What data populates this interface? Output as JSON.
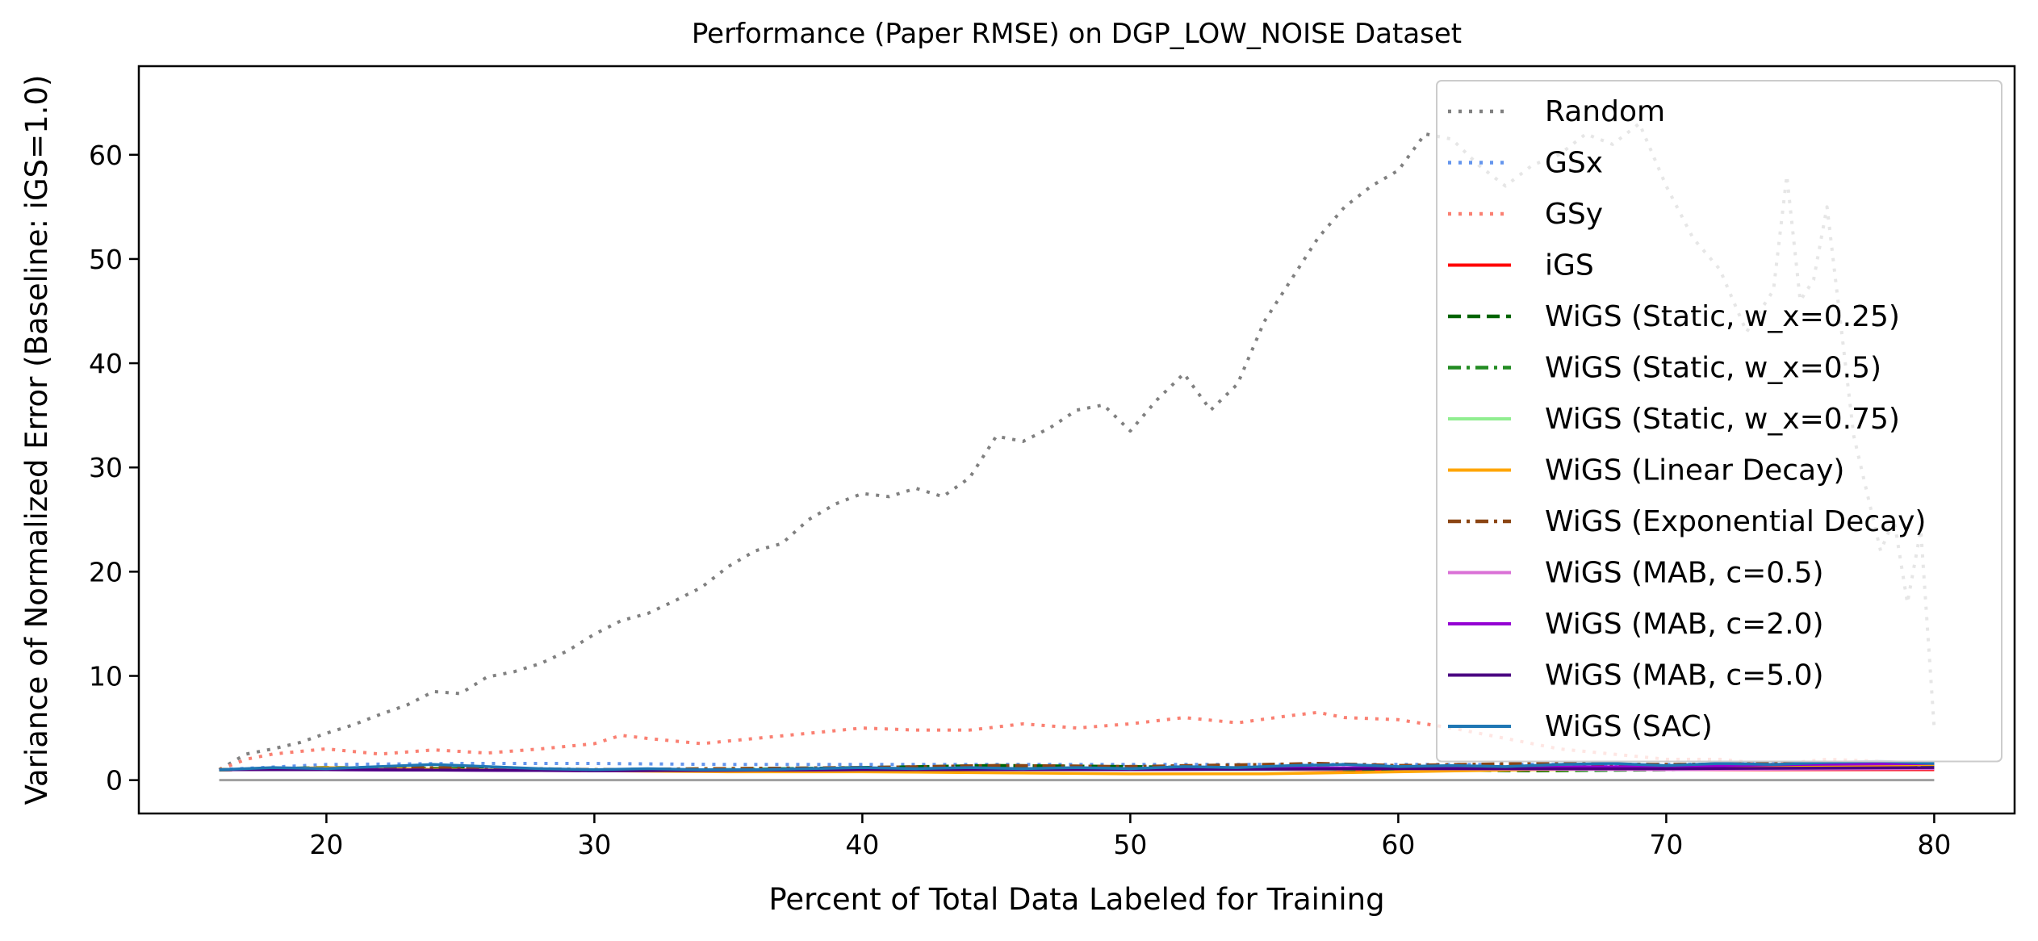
{
  "chart_data": {
    "type": "line",
    "title": "Performance (Paper RMSE) on DGP_LOW_NOISE Dataset",
    "xlabel": "Percent of Total Data Labeled for Training",
    "ylabel": "Variance of Normalized Error (Baseline: iGS=1.0)",
    "xlim": [
      13,
      83
    ],
    "ylim": [
      -3.2,
      68.5
    ],
    "xticks": [
      20,
      30,
      40,
      50,
      60,
      70,
      80
    ],
    "yticks": [
      0,
      10,
      20,
      30,
      40,
      50,
      60
    ],
    "grid": false,
    "legend_position": "top-right",
    "series": [
      {
        "name": "Random",
        "color": "#808080",
        "style": "dotted",
        "points": [
          [
            16,
            1.0
          ],
          [
            17,
            2.5
          ],
          [
            18,
            3.0
          ],
          [
            19,
            3.6
          ],
          [
            20,
            4.5
          ],
          [
            21,
            5.3
          ],
          [
            22,
            6.3
          ],
          [
            23,
            7.2
          ],
          [
            24,
            8.5
          ],
          [
            25,
            8.3
          ],
          [
            26,
            9.9
          ],
          [
            27,
            10.4
          ],
          [
            28,
            11.2
          ],
          [
            29,
            12.4
          ],
          [
            30,
            14.0
          ],
          [
            31,
            15.3
          ],
          [
            32,
            16.0
          ],
          [
            33,
            17.2
          ],
          [
            34,
            18.5
          ],
          [
            35,
            20.5
          ],
          [
            36,
            22.0
          ],
          [
            37,
            22.7
          ],
          [
            38,
            25.0
          ],
          [
            39,
            26.5
          ],
          [
            40,
            27.5
          ],
          [
            41,
            27.2
          ],
          [
            42,
            28.0
          ],
          [
            43,
            27.2
          ],
          [
            44,
            29.0
          ],
          [
            45,
            33.0
          ],
          [
            46,
            32.5
          ],
          [
            47,
            33.8
          ],
          [
            48,
            35.5
          ],
          [
            49,
            36.0
          ],
          [
            50,
            33.5
          ],
          [
            51,
            36.5
          ],
          [
            52,
            39.0
          ],
          [
            53,
            35.5
          ],
          [
            54,
            38.0
          ],
          [
            55,
            44.0
          ],
          [
            56,
            48.0
          ],
          [
            57,
            52.0
          ],
          [
            58,
            55.0
          ],
          [
            59,
            57.0
          ],
          [
            60,
            58.5
          ],
          [
            61,
            62.0
          ],
          [
            62,
            61.5
          ],
          [
            63,
            59.0
          ],
          [
            64,
            57.0
          ],
          [
            65,
            59.0
          ],
          [
            66,
            60.0
          ],
          [
            67,
            62.0
          ],
          [
            68,
            61.0
          ],
          [
            69,
            63.0
          ],
          [
            70,
            57.0
          ],
          [
            71,
            52.0
          ],
          [
            72,
            49.0
          ],
          [
            73,
            43.0
          ],
          [
            74,
            47.0
          ],
          [
            74.5,
            58.0
          ],
          [
            75,
            46.0
          ],
          [
            75.5,
            48.0
          ],
          [
            76,
            55.0
          ],
          [
            76.5,
            44.0
          ],
          [
            77,
            33.0
          ],
          [
            78,
            22.0
          ],
          [
            78.5,
            25.0
          ],
          [
            79,
            17.0
          ],
          [
            79.5,
            24.0
          ],
          [
            80,
            5.0
          ]
        ]
      },
      {
        "name": "GSx",
        "color": "#6495ed",
        "style": "dotted",
        "points": [
          [
            16,
            1.0
          ],
          [
            20,
            1.5
          ],
          [
            25,
            1.6
          ],
          [
            30,
            1.6
          ],
          [
            35,
            1.5
          ],
          [
            40,
            1.5
          ],
          [
            45,
            1.5
          ],
          [
            50,
            1.5
          ],
          [
            55,
            1.5
          ],
          [
            60,
            1.5
          ],
          [
            65,
            1.5
          ],
          [
            70,
            1.5
          ],
          [
            75,
            1.6
          ],
          [
            80,
            1.6
          ]
        ]
      },
      {
        "name": "GSy",
        "color": "#fa8072",
        "style": "dotted",
        "points": [
          [
            16,
            1.0
          ],
          [
            17,
            2.0
          ],
          [
            18,
            2.5
          ],
          [
            20,
            3.0
          ],
          [
            22,
            2.5
          ],
          [
            24,
            2.9
          ],
          [
            26,
            2.6
          ],
          [
            28,
            3.0
          ],
          [
            30,
            3.5
          ],
          [
            31,
            4.3
          ],
          [
            32,
            4.0
          ],
          [
            34,
            3.5
          ],
          [
            36,
            4.0
          ],
          [
            38,
            4.5
          ],
          [
            40,
            5.0
          ],
          [
            42,
            4.8
          ],
          [
            44,
            4.8
          ],
          [
            46,
            5.4
          ],
          [
            48,
            5.0
          ],
          [
            50,
            5.4
          ],
          [
            52,
            6.0
          ],
          [
            54,
            5.5
          ],
          [
            56,
            6.2
          ],
          [
            57,
            6.5
          ],
          [
            58,
            6.0
          ],
          [
            60,
            5.8
          ],
          [
            62,
            5.0
          ],
          [
            64,
            4.0
          ],
          [
            66,
            3.0
          ],
          [
            68,
            2.5
          ],
          [
            70,
            2.0
          ],
          [
            72,
            2.0
          ],
          [
            74,
            1.5
          ],
          [
            76,
            2.0
          ],
          [
            78,
            1.8
          ],
          [
            80,
            1.5
          ]
        ]
      },
      {
        "name": "iGS",
        "color": "#ff0000",
        "style": "solid",
        "points": [
          [
            16,
            1.0
          ],
          [
            80,
            1.0
          ]
        ]
      },
      {
        "name": "WiGS (Static, w_x=0.25)",
        "color": "#006400",
        "style": "dashed",
        "points": [
          [
            16,
            1.0
          ],
          [
            20,
            1.2
          ],
          [
            25,
            1.1
          ],
          [
            30,
            0.9
          ],
          [
            35,
            1.0
          ],
          [
            40,
            1.2
          ],
          [
            45,
            1.4
          ],
          [
            50,
            1.3
          ],
          [
            55,
            1.1
          ],
          [
            60,
            1.0
          ],
          [
            65,
            0.9
          ],
          [
            70,
            1.0
          ],
          [
            75,
            1.3
          ],
          [
            80,
            1.4
          ]
        ]
      },
      {
        "name": "WiGS (Static, w_x=0.5)",
        "color": "#228b22",
        "style": "dashdot",
        "points": [
          [
            16,
            1.0
          ],
          [
            20,
            1.1
          ],
          [
            25,
            1.2
          ],
          [
            30,
            1.0
          ],
          [
            35,
            1.1
          ],
          [
            40,
            1.2
          ],
          [
            45,
            1.2
          ],
          [
            50,
            1.1
          ],
          [
            55,
            1.2
          ],
          [
            60,
            1.1
          ],
          [
            65,
            1.0
          ],
          [
            70,
            1.1
          ],
          [
            75,
            1.2
          ],
          [
            80,
            1.3
          ]
        ]
      },
      {
        "name": "WiGS (Static, w_x=0.75)",
        "color": "#90ee90",
        "style": "solid",
        "points": [
          [
            16,
            1.0
          ],
          [
            20,
            1.1
          ],
          [
            25,
            1.0
          ],
          [
            30,
            1.0
          ],
          [
            35,
            1.0
          ],
          [
            40,
            1.1
          ],
          [
            45,
            1.0
          ],
          [
            50,
            1.0
          ],
          [
            55,
            1.0
          ],
          [
            60,
            1.1
          ],
          [
            65,
            1.0
          ],
          [
            70,
            1.0
          ],
          [
            75,
            1.1
          ],
          [
            80,
            1.2
          ]
        ]
      },
      {
        "name": "WiGS (Linear Decay)",
        "color": "#ffa500",
        "style": "solid",
        "points": [
          [
            16,
            1.0
          ],
          [
            20,
            1.2
          ],
          [
            25,
            1.0
          ],
          [
            30,
            0.9
          ],
          [
            35,
            0.8
          ],
          [
            40,
            0.8
          ],
          [
            45,
            0.7
          ],
          [
            50,
            0.6
          ],
          [
            55,
            0.6
          ],
          [
            60,
            0.8
          ],
          [
            65,
            1.0
          ],
          [
            70,
            1.1
          ],
          [
            75,
            1.3
          ],
          [
            80,
            1.5
          ]
        ]
      },
      {
        "name": "WiGS (Exponential Decay)",
        "color": "#8b4513",
        "style": "dashdot",
        "points": [
          [
            16,
            1.0
          ],
          [
            20,
            1.1
          ],
          [
            25,
            1.2
          ],
          [
            30,
            1.0
          ],
          [
            35,
            1.1
          ],
          [
            40,
            1.2
          ],
          [
            45,
            1.4
          ],
          [
            50,
            1.3
          ],
          [
            55,
            1.5
          ],
          [
            57,
            1.6
          ],
          [
            60,
            1.4
          ],
          [
            65,
            1.6
          ],
          [
            70,
            1.5
          ],
          [
            75,
            1.6
          ],
          [
            80,
            1.7
          ]
        ]
      },
      {
        "name": "WiGS (MAB, c=0.5)",
        "color": "#da70d6",
        "style": "solid",
        "points": [
          [
            16,
            1.0
          ],
          [
            20,
            1.0
          ],
          [
            30,
            0.9
          ],
          [
            40,
            1.0
          ],
          [
            50,
            1.0
          ],
          [
            60,
            1.1
          ],
          [
            70,
            1.0
          ],
          [
            80,
            1.1
          ]
        ]
      },
      {
        "name": "WiGS (MAB, c=2.0)",
        "color": "#9400d3",
        "style": "solid",
        "points": [
          [
            16,
            1.0
          ],
          [
            20,
            1.0
          ],
          [
            30,
            0.9
          ],
          [
            40,
            1.0
          ],
          [
            50,
            1.1
          ],
          [
            60,
            1.2
          ],
          [
            70,
            1.3
          ],
          [
            75,
            1.5
          ],
          [
            80,
            1.6
          ]
        ]
      },
      {
        "name": "WiGS (MAB, c=5.0)",
        "color": "#4b0082",
        "style": "solid",
        "points": [
          [
            16,
            1.0
          ],
          [
            20,
            1.0
          ],
          [
            30,
            0.9
          ],
          [
            40,
            1.0
          ],
          [
            50,
            1.0
          ],
          [
            60,
            1.1
          ],
          [
            70,
            1.1
          ],
          [
            80,
            1.2
          ]
        ]
      },
      {
        "name": "WiGS (SAC)",
        "color": "#1f77b4",
        "style": "solid",
        "points": [
          [
            16,
            1.0
          ],
          [
            18,
            1.2
          ],
          [
            20,
            1.1
          ],
          [
            22,
            1.3
          ],
          [
            24,
            1.5
          ],
          [
            26,
            1.3
          ],
          [
            28,
            1.1
          ],
          [
            30,
            1.0
          ],
          [
            32,
            1.1
          ],
          [
            34,
            1.0
          ],
          [
            36,
            1.0
          ],
          [
            38,
            1.1
          ],
          [
            40,
            1.2
          ],
          [
            42,
            1.1
          ],
          [
            44,
            1.2
          ],
          [
            46,
            1.1
          ],
          [
            48,
            1.2
          ],
          [
            50,
            1.1
          ],
          [
            52,
            1.3
          ],
          [
            54,
            1.2
          ],
          [
            56,
            1.4
          ],
          [
            58,
            1.5
          ],
          [
            60,
            1.3
          ],
          [
            62,
            1.4
          ],
          [
            64,
            1.3
          ],
          [
            66,
            1.5
          ],
          [
            68,
            1.6
          ],
          [
            70,
            1.4
          ],
          [
            72,
            1.6
          ],
          [
            74,
            1.5
          ],
          [
            76,
            1.7
          ],
          [
            78,
            1.8
          ],
          [
            80,
            1.6
          ]
        ]
      }
    ],
    "extra_lines": [
      {
        "color": "#a0a0a0",
        "style": "solid",
        "points": [
          [
            16,
            0
          ],
          [
            80,
            0
          ]
        ]
      }
    ]
  }
}
